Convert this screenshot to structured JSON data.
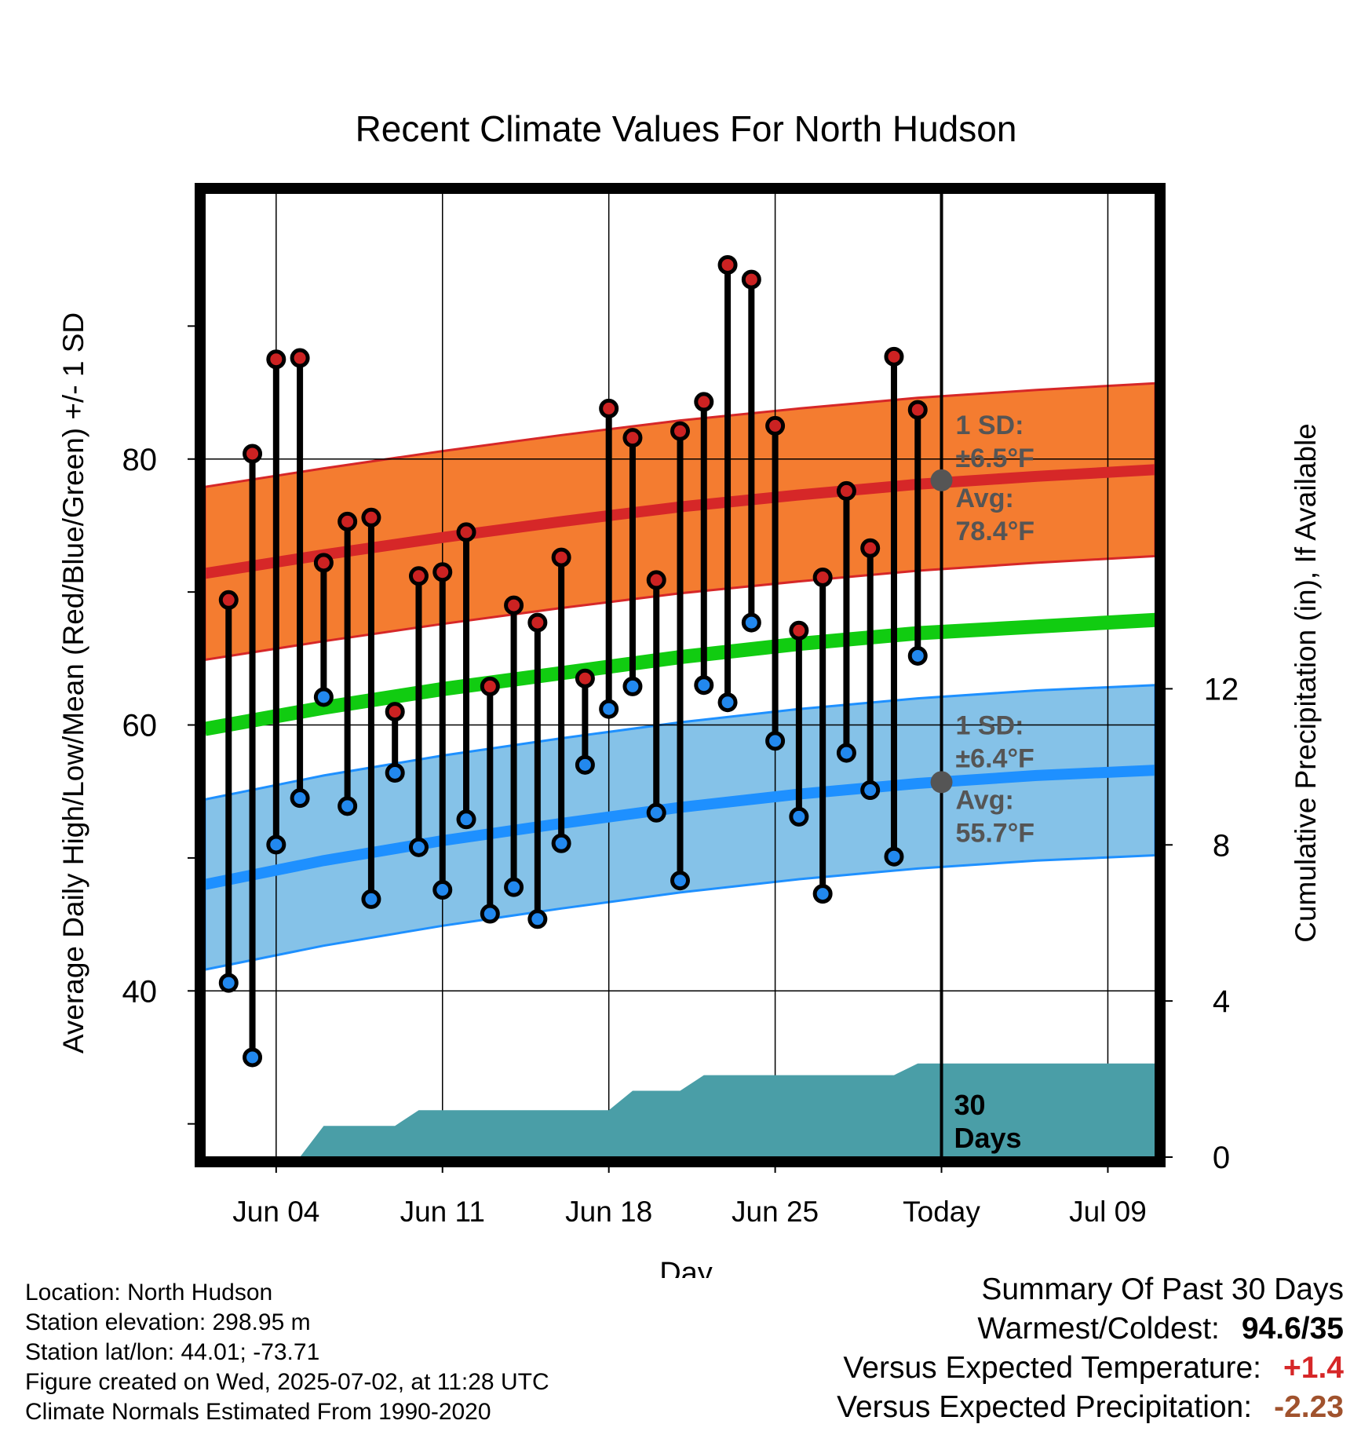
{
  "chart_data": {
    "type": "line",
    "title": "Recent Climate Values For North Hudson",
    "xlabel": "Day",
    "ylabel_left": "Average Daily High/Low/Mean (Red/Blue/Green) +/- 1 SD",
    "ylabel_right": "Cumulative Precipitation (in), If Available",
    "x_ticks": [
      "Jun 04",
      "Jun 11",
      "Jun 18",
      "Jun 25",
      "Today",
      "Jul 09"
    ],
    "y_ticks_left": [
      "40",
      "60",
      "80"
    ],
    "y_ticks_right": [
      "0",
      "4",
      "8",
      "12"
    ],
    "ylim_left": [
      27.5,
      100
    ],
    "ylim_right": [
      0,
      24.7
    ],
    "x_range": [
      "2025-06-01",
      "2025-07-11"
    ],
    "today": "2025-07-02",
    "daily_observed": {
      "dates": [
        "2025-06-02",
        "2025-06-03",
        "2025-06-04",
        "2025-06-05",
        "2025-06-06",
        "2025-06-07",
        "2025-06-08",
        "2025-06-09",
        "2025-06-10",
        "2025-06-11",
        "2025-06-12",
        "2025-06-13",
        "2025-06-14",
        "2025-06-15",
        "2025-06-16",
        "2025-06-17",
        "2025-06-18",
        "2025-06-19",
        "2025-06-20",
        "2025-06-21",
        "2025-06-22",
        "2025-06-23",
        "2025-06-24",
        "2025-06-25",
        "2025-06-26",
        "2025-06-27",
        "2025-06-28",
        "2025-06-29",
        "2025-06-30",
        "2025-07-01"
      ],
      "high": [
        69.4,
        80.4,
        87.5,
        87.6,
        72.2,
        75.3,
        75.6,
        61.0,
        71.2,
        71.5,
        74.5,
        62.9,
        69.0,
        67.7,
        72.6,
        63.5,
        83.8,
        81.6,
        70.9,
        82.1,
        84.3,
        94.6,
        93.5,
        82.5,
        67.1,
        71.1,
        77.6,
        73.3,
        87.7,
        83.7
      ],
      "low": [
        40.6,
        35.0,
        51.0,
        54.5,
        62.1,
        53.9,
        46.9,
        56.4,
        50.8,
        47.6,
        52.9,
        45.8,
        47.8,
        45.4,
        51.1,
        57.0,
        61.2,
        62.9,
        53.4,
        48.3,
        63.0,
        61.7,
        67.7,
        58.8,
        53.1,
        47.3,
        57.9,
        55.1,
        50.1,
        65.2
      ]
    },
    "normals": {
      "dates": [
        "2025-06-01",
        "2025-06-06",
        "2025-06-11",
        "2025-06-16",
        "2025-06-21",
        "2025-06-26",
        "2025-07-01",
        "2025-07-06",
        "2025-07-11"
      ],
      "avg_high": [
        71.4,
        72.8,
        74.1,
        75.3,
        76.4,
        77.3,
        78.1,
        78.7,
        79.2
      ],
      "avg_low": [
        48.0,
        49.8,
        51.3,
        52.6,
        53.8,
        54.8,
        55.6,
        56.2,
        56.6
      ],
      "avg_mean": [
        59.7,
        61.3,
        62.7,
        63.9,
        65.1,
        66.1,
        66.9,
        67.4,
        67.9
      ],
      "sd_high": 6.5,
      "sd_low": 6.4
    },
    "precipitation": {
      "dates": [
        "2025-06-01",
        "2025-06-05",
        "2025-06-06",
        "2025-06-09",
        "2025-06-10",
        "2025-06-18",
        "2025-06-19",
        "2025-06-21",
        "2025-06-22",
        "2025-06-24",
        "2025-06-30",
        "2025-07-01",
        "2025-07-11"
      ],
      "cumulative": [
        0.0,
        0.0,
        0.8,
        0.8,
        1.2,
        1.2,
        1.7,
        1.7,
        2.1,
        2.1,
        2.1,
        2.4,
        2.4
      ]
    },
    "annotations": {
      "high_sd": "1 SD:",
      "high_sd_value": "±6.5°F",
      "high_avg": "Avg:",
      "high_avg_value": "78.4°F",
      "low_sd": "1 SD:",
      "low_sd_value": "±6.4°F",
      "low_avg": "Avg:",
      "low_avg_value": "55.7°F",
      "precip_days_1": "30",
      "precip_days_2": "Days"
    },
    "colors": {
      "high_band": "#f47c30",
      "high_line": "#d62728",
      "low_band": "#85c2e8",
      "low_line": "#1e90ff",
      "mean_line": "#11cc11",
      "precip": "#4a9ea7",
      "marker_high": "#cc2222",
      "marker_low": "#2288ee",
      "annotation": "#555555"
    },
    "grid": true
  },
  "info": {
    "location": "Location: North Hudson",
    "elevation": "Station elevation: 298.95 m",
    "latlon": "Station lat/lon: 44.01; -73.71",
    "created": "Figure created on Wed, 2025-07-02, at 11:28 UTC",
    "normals": "Climate Normals Estimated From 1990-2020"
  },
  "summary": {
    "title": "Summary Of Past 30 Days",
    "warmest_label": "Warmest/Coldest:",
    "warmest_value": "94.6/35",
    "temp_label": "Versus Expected Temperature:",
    "temp_value": "+1.4",
    "temp_color": "#d62728",
    "precip_label": "Versus Expected Precipitation:",
    "precip_value": "-2.23",
    "precip_color": "#a0522d"
  }
}
